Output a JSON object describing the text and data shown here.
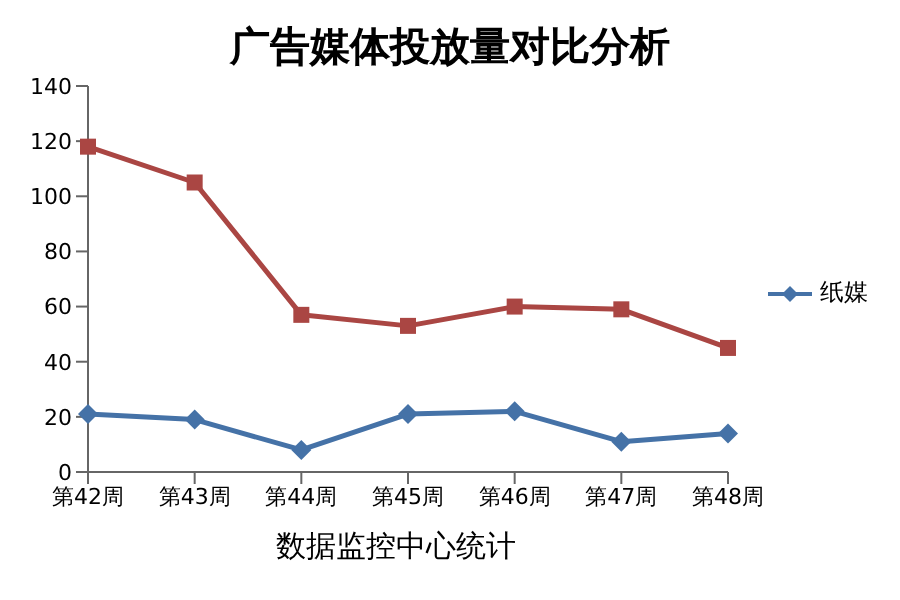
{
  "chart_data": {
    "type": "line",
    "title": "广告媒体投放量对比分析",
    "categories": [
      "第42周",
      "第43周",
      "第44周",
      "第45周",
      "第46周",
      "第47周",
      "第48周"
    ],
    "series": [
      {
        "name": "纸媒",
        "color": "#4572a7",
        "marker": "diamond",
        "values": [
          21,
          19,
          8,
          21,
          22,
          11,
          14
        ]
      },
      {
        "color": "#aa4643",
        "marker": "square",
        "values": [
          118,
          105,
          57,
          53,
          60,
          59,
          45
        ]
      }
    ],
    "ylim": [
      0,
      140
    ],
    "yticks": [
      0,
      20,
      40,
      60,
      80,
      100,
      120,
      140
    ],
    "grid": false,
    "legend": "right",
    "annotations": [
      "数据监控中心统计"
    ]
  }
}
